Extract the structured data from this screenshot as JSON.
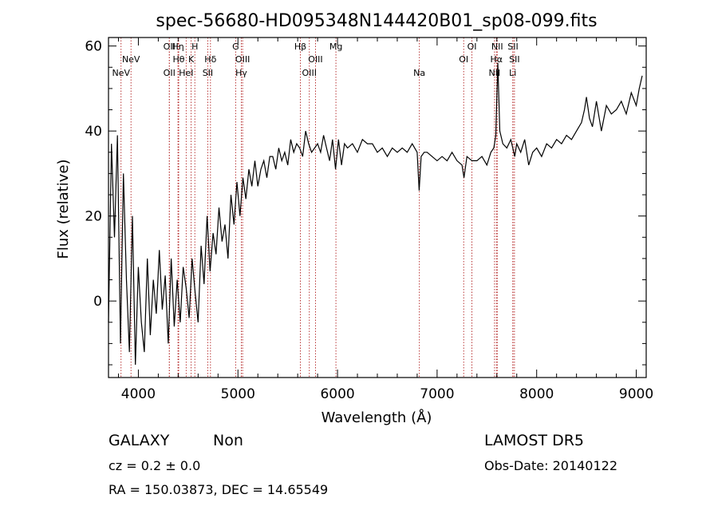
{
  "title": "spec-56680-HD095348N144420B01_sp08-099.fits",
  "colors": {
    "spectrum": "#000000",
    "lines": "#b22222",
    "frame": "#000000"
  },
  "chart_data": {
    "type": "line",
    "title": "spec-56680-HD095348N144420B01_sp08-099.fits",
    "xlabel": "Wavelength (Å)",
    "ylabel": "Flux (relative)",
    "xlim": [
      3700,
      9100
    ],
    "ylim": [
      -18,
      62
    ],
    "xticks": [
      4000,
      5000,
      6000,
      7000,
      8000,
      9000
    ],
    "yticks": [
      0,
      20,
      40,
      60
    ],
    "grid": false,
    "legend": "none",
    "spectral_lines": [
      {
        "label": "NeV",
        "x": 3826,
        "row": 3
      },
      {
        "label": "NeV",
        "x": 3926,
        "row": 2
      },
      {
        "label": "OII",
        "x": 4311,
        "row": 1
      },
      {
        "label": "OII",
        "x": 4311,
        "row": 3
      },
      {
        "label": "Hη",
        "x": 4398,
        "row": 1
      },
      {
        "label": "Hθ",
        "x": 4405,
        "row": 2
      },
      {
        "label": "HeI",
        "x": 4480,
        "row": 3
      },
      {
        "label": "K",
        "x": 4530,
        "row": 2
      },
      {
        "label": "H",
        "x": 4567,
        "row": 1
      },
      {
        "label": "SII",
        "x": 4697,
        "row": 3
      },
      {
        "label": "Hδ",
        "x": 4724,
        "row": 2
      },
      {
        "label": "G",
        "x": 4977,
        "row": 1
      },
      {
        "label": "OIII",
        "x": 5047,
        "row": 2
      },
      {
        "label": "Hγ",
        "x": 5034,
        "row": 3
      },
      {
        "label": "Hβ",
        "x": 5627,
        "row": 1
      },
      {
        "label": "OIII",
        "x": 5717,
        "row": 3
      },
      {
        "label": "OIII",
        "x": 5779,
        "row": 2
      },
      {
        "label": "Mg",
        "x": 5984,
        "row": 1
      },
      {
        "label": "Na",
        "x": 6822,
        "row": 3
      },
      {
        "label": "OI",
        "x": 7267,
        "row": 2
      },
      {
        "label": "OI",
        "x": 7350,
        "row": 1
      },
      {
        "label": "NII",
        "x": 7577,
        "row": 3
      },
      {
        "label": "NII",
        "x": 7604,
        "row": 1
      },
      {
        "label": "Hα",
        "x": 7596,
        "row": 2
      },
      {
        "label": "SII",
        "x": 7762,
        "row": 1
      },
      {
        "label": "SII",
        "x": 7777,
        "row": 2
      },
      {
        "label": "Li",
        "x": 7760,
        "row": 3
      }
    ],
    "series": [
      {
        "x": [
          3700,
          3730,
          3760,
          3790,
          3820,
          3850,
          3880,
          3910,
          3940,
          3970,
          4000,
          4030,
          4060,
          4090,
          4120,
          4150,
          4180,
          4210,
          4240,
          4270,
          4300,
          4330,
          4360,
          4390,
          4420,
          4450,
          4480,
          4510,
          4540,
          4570,
          4600,
          4630,
          4660,
          4690,
          4720,
          4750,
          4780,
          4810,
          4840,
          4870,
          4900,
          4930,
          4960,
          4990,
          5020,
          5050,
          5080,
          5110,
          5140,
          5170,
          5200,
          5230,
          5260,
          5290,
          5320,
          5350,
          5380,
          5410,
          5440,
          5470,
          5500,
          5530,
          5560,
          5590,
          5620,
          5650,
          5680,
          5710,
          5740,
          5770,
          5800,
          5830,
          5860,
          5890,
          5920,
          5950,
          5980,
          6010,
          6040,
          6070,
          6100,
          6150,
          6200,
          6250,
          6300,
          6350,
          6400,
          6450,
          6500,
          6550,
          6600,
          6650,
          6700,
          6750,
          6800,
          6820,
          6840,
          6870,
          6900,
          6950,
          7000,
          7050,
          7100,
          7150,
          7200,
          7250,
          7270,
          7300,
          7350,
          7400,
          7450,
          7500,
          7540,
          7570,
          7590,
          7600,
          7610,
          7630,
          7660,
          7700,
          7740,
          7780,
          7800,
          7840,
          7880,
          7920,
          7960,
          8000,
          8050,
          8100,
          8150,
          8200,
          8250,
          8300,
          8350,
          8400,
          8450,
          8480,
          8500,
          8530,
          8560,
          8600,
          8650,
          8700,
          8750,
          8800,
          8850,
          8900,
          8950,
          9000,
          9030,
          9060
        ],
        "y": [
          -5,
          37,
          15,
          39,
          -10,
          30,
          5,
          -12,
          20,
          -15,
          8,
          -5,
          -12,
          10,
          -8,
          5,
          -3,
          12,
          -2,
          6,
          -10,
          10,
          -6,
          5,
          -5,
          8,
          3,
          -4,
          10,
          2,
          -5,
          13,
          4,
          20,
          7,
          16,
          11,
          22,
          14,
          18,
          10,
          25,
          18,
          28,
          20,
          29,
          24,
          31,
          27,
          33,
          27,
          31,
          33,
          29,
          34,
          34,
          31,
          36,
          33,
          35,
          32,
          38,
          35,
          37,
          36,
          34,
          40,
          37,
          35,
          36,
          37,
          35,
          39,
          36,
          33,
          38,
          31,
          38,
          32,
          37,
          36,
          37,
          35,
          38,
          37,
          37,
          35,
          36,
          34,
          36,
          35,
          36,
          35,
          37,
          35,
          26,
          34,
          35,
          35,
          34,
          33,
          34,
          33,
          35,
          33,
          32,
          29,
          34,
          33,
          33,
          34,
          32,
          35,
          36,
          39,
          48,
          56,
          40,
          37,
          36,
          38,
          34,
          37,
          35,
          38,
          32,
          35,
          36,
          34,
          37,
          36,
          38,
          37,
          39,
          38,
          40,
          42,
          45,
          48,
          43,
          41,
          47,
          40,
          46,
          44,
          45,
          47,
          44,
          49,
          46,
          50,
          53
        ]
      }
    ],
    "annotations": {
      "object_class": "GALAXY",
      "subclass": "Non",
      "survey": "LAMOST DR5",
      "cz": "cz = 0.2 ± 0.0",
      "obs_date": "Obs-Date: 20140122",
      "coords": "RA = 150.03873, DEC =  14.65549"
    }
  }
}
